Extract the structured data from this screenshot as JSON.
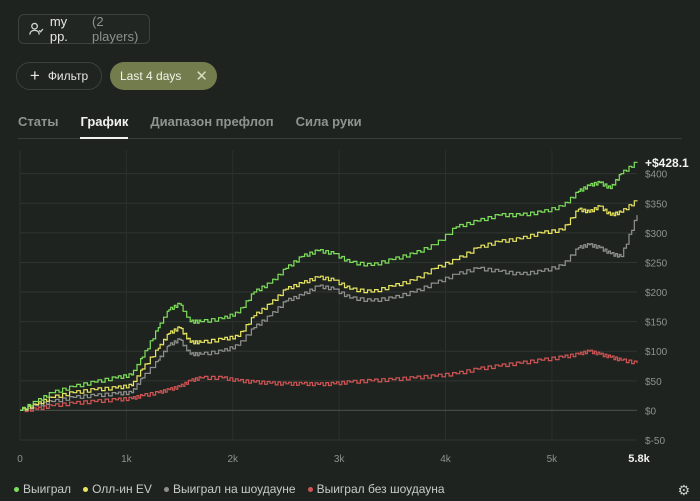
{
  "player": {
    "name": "my pp.",
    "count": "(2 players)",
    "icon": "user-group-icon"
  },
  "filter": {
    "label": "Фильтр",
    "icon": "plus-icon"
  },
  "date_filter": {
    "label": "Last 4 days",
    "icon": "close-icon"
  },
  "tabs": [
    {
      "label": "Статы",
      "active": false
    },
    {
      "label": "График",
      "active": true
    },
    {
      "label": "Диапазон префлоп",
      "active": false
    },
    {
      "label": "Сила руки",
      "active": false
    }
  ],
  "current_value": "+$428.1",
  "settings_icon": "gear-icon",
  "colors": {
    "won": "#7ee05a",
    "allin_ev": "#e8e660",
    "showdown": "#8f918f",
    "nonshowdown": "#d05454"
  },
  "chart_data": {
    "type": "line",
    "xlim": [
      0,
      5800
    ],
    "ylim": [
      -50,
      440
    ],
    "x_ticks": [
      {
        "value": 0,
        "label": "0"
      },
      {
        "value": 1000,
        "label": "1k"
      },
      {
        "value": 2000,
        "label": "2k"
      },
      {
        "value": 3000,
        "label": "3k"
      },
      {
        "value": 4000,
        "label": "4k"
      },
      {
        "value": 5000,
        "label": "5k"
      },
      {
        "value": 5800,
        "label": "5.8k"
      }
    ],
    "y_ticks": [
      {
        "value": 400,
        "label": "$400"
      },
      {
        "value": 350,
        "label": "$350"
      },
      {
        "value": 300,
        "label": "$300"
      },
      {
        "value": 250,
        "label": "$250"
      },
      {
        "value": 200,
        "label": "$200"
      },
      {
        "value": 150,
        "label": "$150"
      },
      {
        "value": 100,
        "label": "$100"
      },
      {
        "value": 50,
        "label": "$50"
      },
      {
        "value": 0,
        "label": "$0"
      },
      {
        "value": -50,
        "label": "$-50"
      }
    ],
    "grid": true,
    "legend_position": "bottom-left",
    "series": [
      {
        "name": "Выиграл",
        "color": "#7ee05a",
        "x": [
          0,
          150,
          300,
          500,
          700,
          900,
          1050,
          1150,
          1300,
          1400,
          1500,
          1600,
          1700,
          1900,
          2050,
          2200,
          2350,
          2500,
          2650,
          2800,
          2950,
          3100,
          3300,
          3500,
          3700,
          3900,
          4100,
          4300,
          4500,
          4700,
          4900,
          5100,
          5250,
          5350,
          5450,
          5550,
          5650,
          5800
        ],
        "y": [
          0,
          15,
          30,
          40,
          48,
          55,
          60,
          90,
          140,
          170,
          180,
          150,
          150,
          155,
          165,
          200,
          215,
          240,
          260,
          270,
          265,
          250,
          245,
          255,
          265,
          280,
          310,
          320,
          330,
          330,
          335,
          345,
          370,
          380,
          385,
          375,
          400,
          420
        ]
      },
      {
        "name": "Олл-ин EV",
        "color": "#e8e660",
        "x": [
          0,
          150,
          300,
          500,
          700,
          900,
          1050,
          1150,
          1300,
          1400,
          1500,
          1600,
          1700,
          1900,
          2050,
          2200,
          2350,
          2500,
          2650,
          2800,
          2950,
          3100,
          3300,
          3500,
          3700,
          3900,
          4100,
          4300,
          4500,
          4700,
          4900,
          5100,
          5250,
          5350,
          5450,
          5550,
          5650,
          5800
        ],
        "y": [
          0,
          10,
          22,
          30,
          35,
          38,
          42,
          70,
          105,
          130,
          140,
          115,
          115,
          120,
          125,
          160,
          180,
          205,
          215,
          225,
          220,
          205,
          200,
          210,
          220,
          240,
          255,
          275,
          285,
          290,
          300,
          305,
          340,
          335,
          345,
          330,
          335,
          355
        ]
      },
      {
        "name": "Выиграл на шоудауне",
        "color": "#8f918f",
        "x": [
          0,
          150,
          300,
          500,
          700,
          900,
          1050,
          1150,
          1300,
          1400,
          1500,
          1600,
          1700,
          1900,
          2050,
          2200,
          2350,
          2500,
          2650,
          2800,
          2950,
          3100,
          3300,
          3500,
          3700,
          3900,
          4100,
          4300,
          4500,
          4700,
          4900,
          5100,
          5250,
          5350,
          5450,
          5550,
          5650,
          5800
        ],
        "y": [
          0,
          8,
          15,
          22,
          25,
          28,
          30,
          55,
          85,
          110,
          120,
          95,
          95,
          100,
          110,
          140,
          160,
          185,
          195,
          210,
          205,
          190,
          185,
          190,
          200,
          215,
          230,
          240,
          235,
          230,
          235,
          245,
          275,
          280,
          275,
          265,
          260,
          330
        ]
      },
      {
        "name": "Выиграл без шоудауна",
        "color": "#d05454",
        "x": [
          0,
          150,
          300,
          500,
          700,
          900,
          1050,
          1150,
          1300,
          1400,
          1500,
          1600,
          1700,
          1900,
          2050,
          2200,
          2350,
          2500,
          2650,
          2800,
          2950,
          3100,
          3300,
          3500,
          3700,
          3900,
          4100,
          4300,
          4500,
          4700,
          4900,
          5100,
          5250,
          5350,
          5450,
          5550,
          5650,
          5800
        ],
        "y": [
          0,
          2,
          8,
          12,
          15,
          18,
          20,
          25,
          30,
          35,
          40,
          50,
          55,
          55,
          50,
          48,
          46,
          45,
          45,
          44,
          45,
          48,
          50,
          52,
          55,
          58,
          62,
          70,
          75,
          80,
          85,
          90,
          95,
          100,
          95,
          90,
          85,
          80
        ]
      }
    ]
  }
}
